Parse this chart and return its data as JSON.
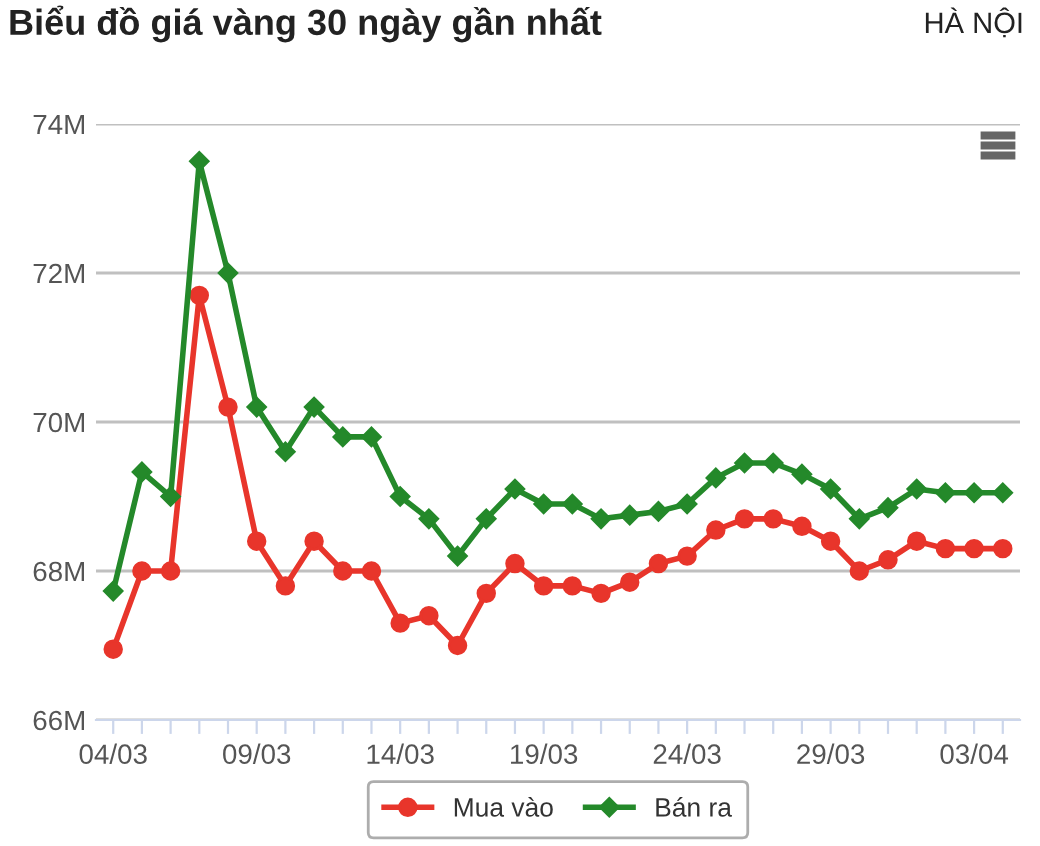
{
  "chart_data": {
    "type": "line",
    "title": "Biểu đồ giá vàng 30 ngày gần nhất",
    "annotations": [
      "HÀ NỘI"
    ],
    "categories": [
      "04/03",
      null,
      null,
      null,
      null,
      "09/03",
      null,
      null,
      null,
      null,
      "14/03",
      null,
      null,
      null,
      null,
      "19/03",
      null,
      null,
      null,
      null,
      "24/03",
      null,
      null,
      null,
      null,
      "29/03",
      null,
      null,
      null,
      null,
      "03/04",
      null
    ],
    "series": [
      {
        "name": "Mua vào",
        "color": "#e8352b",
        "marker": "circle",
        "values": [
          66.95,
          68.0,
          68.0,
          71.7,
          70.2,
          68.4,
          67.8,
          68.4,
          68.0,
          68.0,
          67.3,
          67.4,
          67.0,
          67.7,
          68.1,
          67.8,
          67.8,
          67.7,
          67.85,
          68.1,
          68.2,
          68.55,
          68.7,
          68.7,
          68.6,
          68.4,
          68.0,
          68.15,
          68.4,
          68.3,
          68.3,
          68.3
        ]
      },
      {
        "name": "Bán ra",
        "color": "#24892a",
        "marker": "diamond",
        "values": [
          67.73,
          69.33,
          69.0,
          73.5,
          72.0,
          70.2,
          69.6,
          70.2,
          69.8,
          69.8,
          69.0,
          68.7,
          68.2,
          68.7,
          69.1,
          68.9,
          68.9,
          68.7,
          68.75,
          68.8,
          68.9,
          69.25,
          69.45,
          69.45,
          69.3,
          69.1,
          68.7,
          68.85,
          69.1,
          69.05,
          69.05,
          69.05
        ]
      }
    ],
    "ylim": [
      66,
      74
    ],
    "yticks": [
      {
        "value": 66,
        "label": "66M"
      },
      {
        "value": 68,
        "label": "68M"
      },
      {
        "value": 70,
        "label": "70M"
      },
      {
        "value": 72,
        "label": "72M"
      },
      {
        "value": 74,
        "label": "74M"
      }
    ],
    "grid": "y",
    "legend": "bottom",
    "line_style": "solid"
  }
}
